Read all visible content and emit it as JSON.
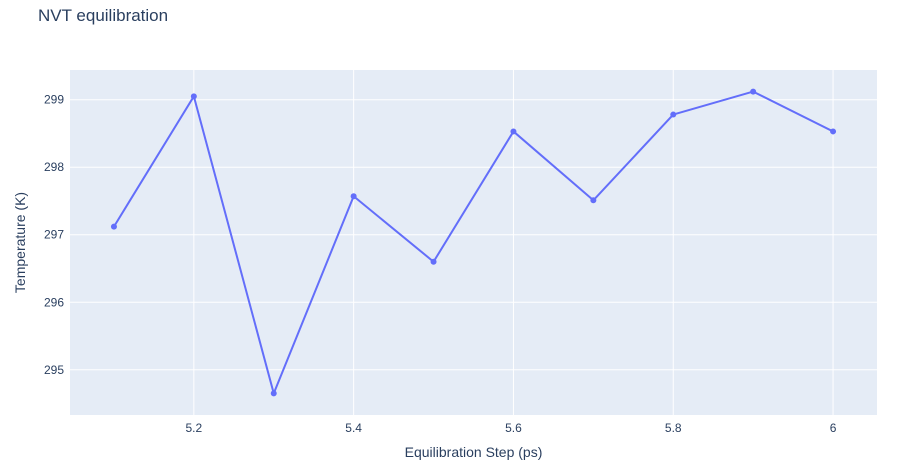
{
  "chart_data": {
    "type": "line",
    "title": "NVT equilibration",
    "xlabel": "Equilibration Step (ps)",
    "ylabel": "Temperature (K)",
    "x": [
      5.1,
      5.2,
      5.3,
      5.4,
      5.5,
      5.6,
      5.7,
      5.8,
      5.9,
      6.0
    ],
    "series": [
      {
        "values": [
          297.12,
          299.05,
          294.65,
          297.57,
          296.6,
          298.53,
          297.51,
          298.78,
          299.12,
          298.53
        ],
        "color": "#636efa",
        "markers": true
      }
    ],
    "xlim": [
      5.045,
      6.055
    ],
    "ylim": [
      294.33,
      299.44
    ],
    "xticks": [
      5.2,
      5.4,
      5.6,
      5.8,
      6.0
    ],
    "xtick_labels": [
      "5.2",
      "5.4",
      "5.6",
      "5.8",
      "6"
    ],
    "yticks": [
      295,
      296,
      297,
      298,
      299
    ],
    "ytick_labels": [
      "295",
      "296",
      "297",
      "298",
      "299"
    ],
    "grid": true,
    "plot_background": "#e5ecf6",
    "grid_color": "#ffffff",
    "text_color": "#2a3f5f"
  }
}
